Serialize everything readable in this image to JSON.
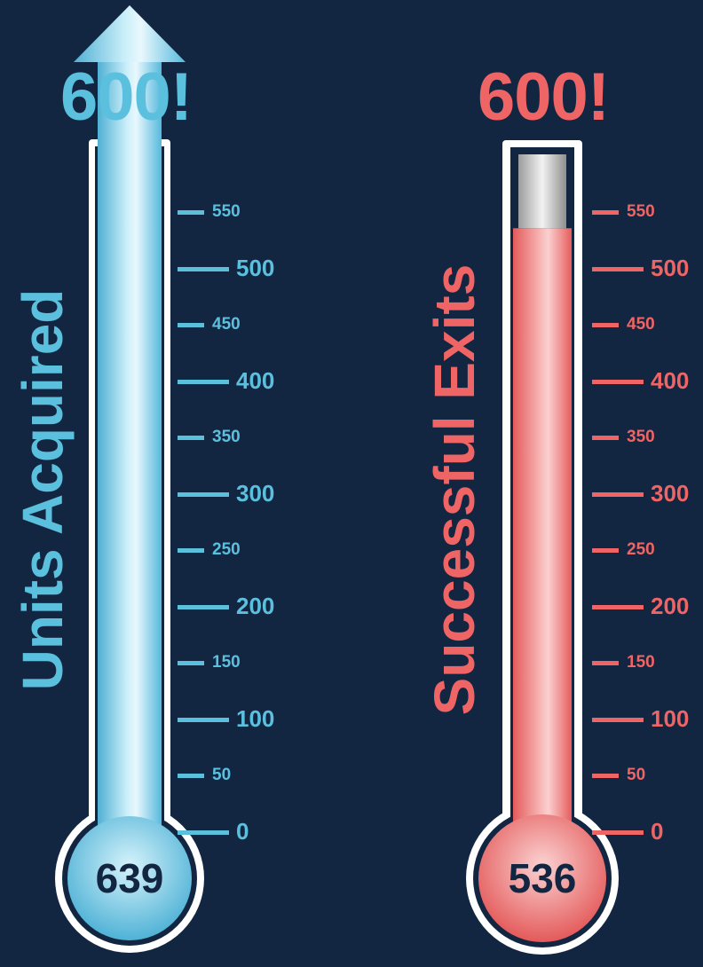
{
  "chart_data": [
    {
      "type": "thermometer",
      "title": "Units Acquired",
      "goal_label": "600!",
      "value": 639,
      "value_label": "639",
      "goal": 600,
      "ylim": [
        0,
        600
      ],
      "ticks": [
        0,
        50,
        100,
        150,
        200,
        250,
        300,
        350,
        400,
        450,
        500,
        550
      ],
      "exceeded_goal": true,
      "color": "#5bbfde"
    },
    {
      "type": "thermometer",
      "title": "Successful Exits",
      "goal_label": "600!",
      "value": 536,
      "value_label": "536",
      "goal": 600,
      "ylim": [
        0,
        600
      ],
      "ticks": [
        0,
        50,
        100,
        150,
        200,
        250,
        300,
        350,
        400,
        450,
        500,
        550
      ],
      "exceeded_goal": false,
      "color": "#ef6464"
    }
  ]
}
